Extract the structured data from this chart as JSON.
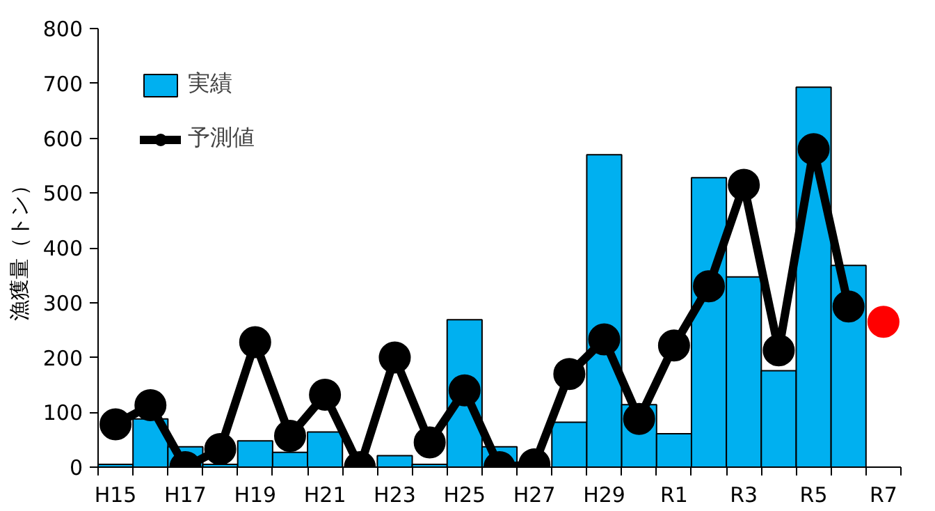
{
  "chart_data": {
    "type": "bar",
    "ylabel": "漁獲量（トン）",
    "categories": [
      "H15",
      null,
      "H17",
      null,
      "H19",
      null,
      "H21",
      null,
      "H23",
      null,
      "H25",
      null,
      "H27",
      null,
      "H29",
      null,
      "R1",
      null,
      "R3",
      null,
      "R5",
      null,
      "R7"
    ],
    "series": [
      {
        "name": "実績",
        "color": "#00b0f0",
        "values": [
          5,
          88,
          37,
          5,
          48,
          27,
          64,
          null,
          21,
          5,
          269,
          37,
          null,
          82,
          570,
          114,
          61,
          528,
          347,
          176,
          693,
          368,
          null
        ]
      },
      {
        "name": "予測値",
        "type": "line",
        "color": "#000000",
        "marker": "circle",
        "values": [
          78,
          113,
          0,
          33,
          228,
          57,
          132,
          0,
          200,
          45,
          140,
          0,
          5,
          170,
          233,
          88,
          222,
          330,
          515,
          213,
          580,
          293,
          null
        ]
      },
      {
        "type": "scatter",
        "color": "#ff0000",
        "marker": "circle",
        "values": [
          null,
          null,
          null,
          null,
          null,
          null,
          null,
          null,
          null,
          null,
          null,
          null,
          null,
          null,
          null,
          null,
          null,
          null,
          null,
          null,
          null,
          null,
          265
        ]
      }
    ],
    "ylim": [
      0,
      800
    ],
    "yticks": [
      0,
      100,
      200,
      300,
      400,
      500,
      600,
      700,
      800
    ],
    "grid": false,
    "legend": "top left"
  }
}
